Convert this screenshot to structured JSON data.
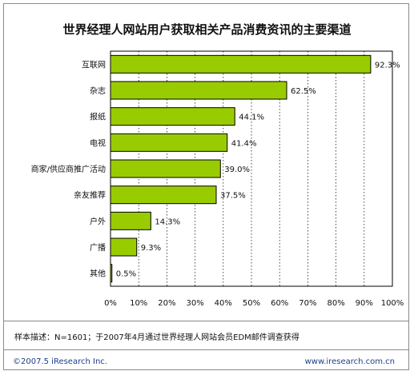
{
  "chart_data": {
    "type": "bar",
    "orientation": "horizontal",
    "title": "世界经理人网站用户获取相关产品消费资讯的主要渠道",
    "categories": [
      "互联网",
      "杂志",
      "报纸",
      "电视",
      "商家/供应商推广活动",
      "亲友推荐",
      "户外",
      "广播",
      "其他"
    ],
    "values": [
      92.3,
      62.5,
      44.1,
      41.4,
      39.0,
      37.5,
      14.3,
      9.3,
      0.5
    ],
    "value_labels": [
      "92.3%",
      "62.5%",
      "44.1%",
      "41.4%",
      "39.0%",
      "37.5%",
      "14.3%",
      "9.3%",
      "0.5%"
    ],
    "xlim": [
      0,
      100
    ],
    "x_ticks": [
      "0%",
      "10%",
      "20%",
      "30%",
      "40%",
      "50%",
      "60%",
      "70%",
      "80%",
      "90%",
      "100%"
    ],
    "grid": true,
    "bar_color": "#99cc00",
    "xlabel": "",
    "ylabel": ""
  },
  "note": "样本描述：N=1601；于2007年4月通过世界经理人网站会员EDM邮件调查获得",
  "footer": {
    "copyright": "©2007.5 iResearch Inc.",
    "website": "www.iresearch.com.cn"
  }
}
